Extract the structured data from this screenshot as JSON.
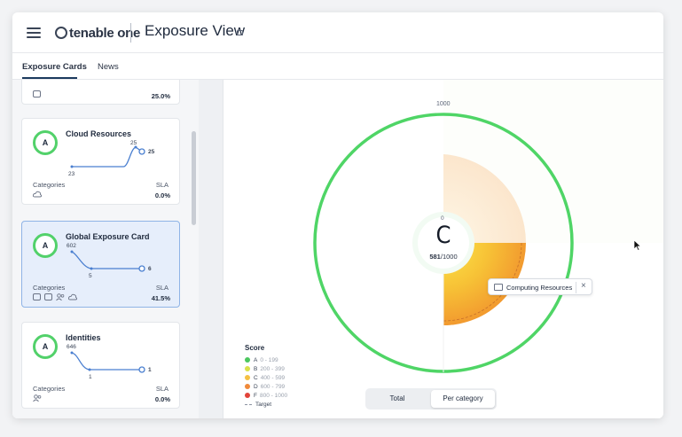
{
  "app": {
    "logo": "tenable one",
    "title": "Exposure View"
  },
  "tabs": [
    {
      "label": "Exposure Cards",
      "active": true
    },
    {
      "label": "News",
      "active": false
    }
  ],
  "cards": [
    {
      "partial_value": "25.0%"
    },
    {
      "title": "Cloud Resources",
      "grade": "A",
      "spark": {
        "start": "23",
        "peak": "25",
        "end": "25"
      },
      "categories_label": "Categories",
      "sla_label": "SLA",
      "sla_value": "0.0%",
      "category_icons": [
        "cloud-icon"
      ]
    },
    {
      "title": "Global Exposure Card",
      "grade": "A",
      "selected": true,
      "spark": {
        "start": "602",
        "low": "5",
        "end": "6"
      },
      "categories_label": "Categories",
      "sla_label": "SLA",
      "sla_value": "41.5%",
      "category_icons": [
        "computer-icon",
        "server-icon",
        "people-icon",
        "cloud-icon"
      ]
    },
    {
      "title": "Identities",
      "grade": "A",
      "spark": {
        "start": "646",
        "low": "1",
        "end": "1"
      },
      "categories_label": "Categories",
      "sla_label": "SLA",
      "sla_value": "0.0%",
      "category_icons": [
        "people-icon"
      ]
    }
  ],
  "gauge": {
    "max_label": "1000",
    "zero_label": "0",
    "grade": "C",
    "score": "581",
    "score_suffix": "/1000",
    "score_value": 581,
    "score_max": 1000
  },
  "legend": {
    "title": "Score",
    "items": [
      {
        "grade": "A",
        "range": "0 - 199",
        "color": "#4cc75f"
      },
      {
        "grade": "B",
        "range": "200 - 399",
        "color": "#d9e04a"
      },
      {
        "grade": "C",
        "range": "400 - 599",
        "color": "#f5c043"
      },
      {
        "grade": "D",
        "range": "600 - 799",
        "color": "#f08a3a"
      },
      {
        "grade": "F",
        "range": "800 - 1000",
        "color": "#e2443a"
      }
    ],
    "target_label": "Target"
  },
  "chip": {
    "label": "Computing Resources",
    "close": "×"
  },
  "toggle": {
    "total": "Total",
    "per_category": "Per category"
  },
  "colors": {
    "accent": "#1c3a5e",
    "ring": "#52d16a",
    "selected_bg": "#e6eefb"
  }
}
